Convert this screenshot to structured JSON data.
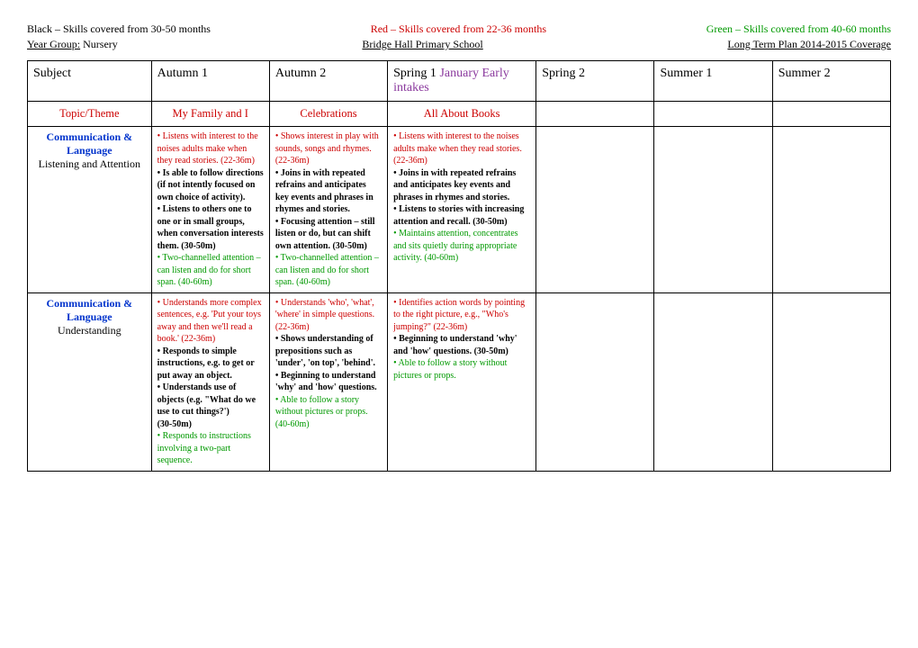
{
  "legend": {
    "black_label": "Black – Skills covered from 30-50 months",
    "red_label": "Red – Skills covered from 22-36 months",
    "green_label": "Green – Skills covered from 40-60 months"
  },
  "header2": {
    "year_group_label": "Year Group:",
    "year_group_value": " Nursery",
    "school": "Bridge Hall Primary School",
    "plan": "Long Term Plan 2014-2015 Coverage"
  },
  "columns": {
    "subject": "Subject",
    "autumn1": "Autumn 1",
    "autumn2": "Autumn 2",
    "spring1": "Spring 1 ",
    "spring1_extra": "January Early intakes",
    "spring2": "Spring 2",
    "summer1": "Summer 1",
    "summer2": "Summer 2"
  },
  "topic_row": {
    "label": "Topic/Theme",
    "autumn1": "My Family and I",
    "autumn2": "Celebrations",
    "spring1": "All About Books"
  },
  "row1": {
    "subject_bold": "Communication & Language",
    "subject_plain": "Listening and Attention",
    "autumn1": [
      {
        "cls": "red",
        "bullet": true,
        "text": "Listens with interest to the noises adults make when they read stories. (22-36m)"
      },
      {
        "cls": "black",
        "bullet": true,
        "text": "Is able to follow directions (if not intently focused on own choice of activity)."
      },
      {
        "cls": "black",
        "bullet": true,
        "text": "Listens to others one to one or in small groups, when conversation interests them. (30-50m)"
      },
      {
        "cls": "green",
        "bullet": true,
        "text": "Two-channelled attention – can listen and do for short span. (40-60m)"
      }
    ],
    "autumn2": [
      {
        "cls": "red",
        "bullet": true,
        "text": "Shows interest in play with sounds, songs and rhymes. (22-36m)"
      },
      {
        "cls": "black",
        "bullet": true,
        "text": "Joins in with repeated refrains and anticipates key events and phrases in rhymes and stories."
      },
      {
        "cls": "black",
        "bullet": true,
        "text": "Focusing attention – still listen or do, but can shift own attention. (30-50m)"
      },
      {
        "cls": "green",
        "bullet": true,
        "text": "Two-channelled attention – can listen and do for short span. (40-60m)"
      }
    ],
    "spring1": [
      {
        "cls": "red",
        "bullet": true,
        "text": "Listens with interest to the noises adults make when they read stories. (22-36m)"
      },
      {
        "cls": "black",
        "bullet": true,
        "text": "Joins in with repeated refrains and anticipates key events and phrases in rhymes and stories."
      },
      {
        "cls": "black",
        "bullet": true,
        "text": "Listens to stories with increasing attention and recall. (30-50m)"
      },
      {
        "cls": "green",
        "bullet": true,
        "text": "Maintains attention, concentrates and sits quietly during appropriate activity. (40-60m)"
      }
    ]
  },
  "row2": {
    "subject_bold": "Communication & Language",
    "subject_plain": "Understanding",
    "autumn1": [
      {
        "cls": "red",
        "bullet": true,
        "text": "Understands more complex sentences, e.g. 'Put your toys away and then we'll read a book.' (22-36m)"
      },
      {
        "cls": "black",
        "bullet": true,
        "text": "Responds to simple instructions, e.g. to get or put away an object."
      },
      {
        "cls": "black",
        "bullet": true,
        "text": "Understands use of objects (e.g. \"What do we use to cut things?')"
      },
      {
        "cls": "black",
        "bullet": false,
        "text": "(30-50m)"
      },
      {
        "cls": "green",
        "bullet": true,
        "text": "Responds to instructions involving a two-part sequence."
      }
    ],
    "autumn2": [
      {
        "cls": "red",
        "bullet": true,
        "text": "Understands 'who', 'what', 'where' in simple questions. (22-36m)"
      },
      {
        "cls": "black",
        "bullet": true,
        "text": "Shows understanding of prepositions such as 'under', 'on top', 'behind'."
      },
      {
        "cls": "black",
        "bullet": true,
        "text": "Beginning to understand 'why' and 'how' questions."
      },
      {
        "cls": "green",
        "bullet": true,
        "text": "Able to follow a story without pictures or props. (40-60m)"
      }
    ],
    "spring1": [
      {
        "cls": "red",
        "bullet": true,
        "text": "Identifies action words by pointing to the right picture, e.g., \"Who's jumping?\" (22-36m)"
      },
      {
        "cls": "black",
        "bullet": true,
        "text": "Beginning to understand 'why' and 'how' questions. (30-50m)"
      },
      {
        "cls": "green",
        "bullet": true,
        "text": "Able to follow a story without pictures or props."
      }
    ]
  }
}
